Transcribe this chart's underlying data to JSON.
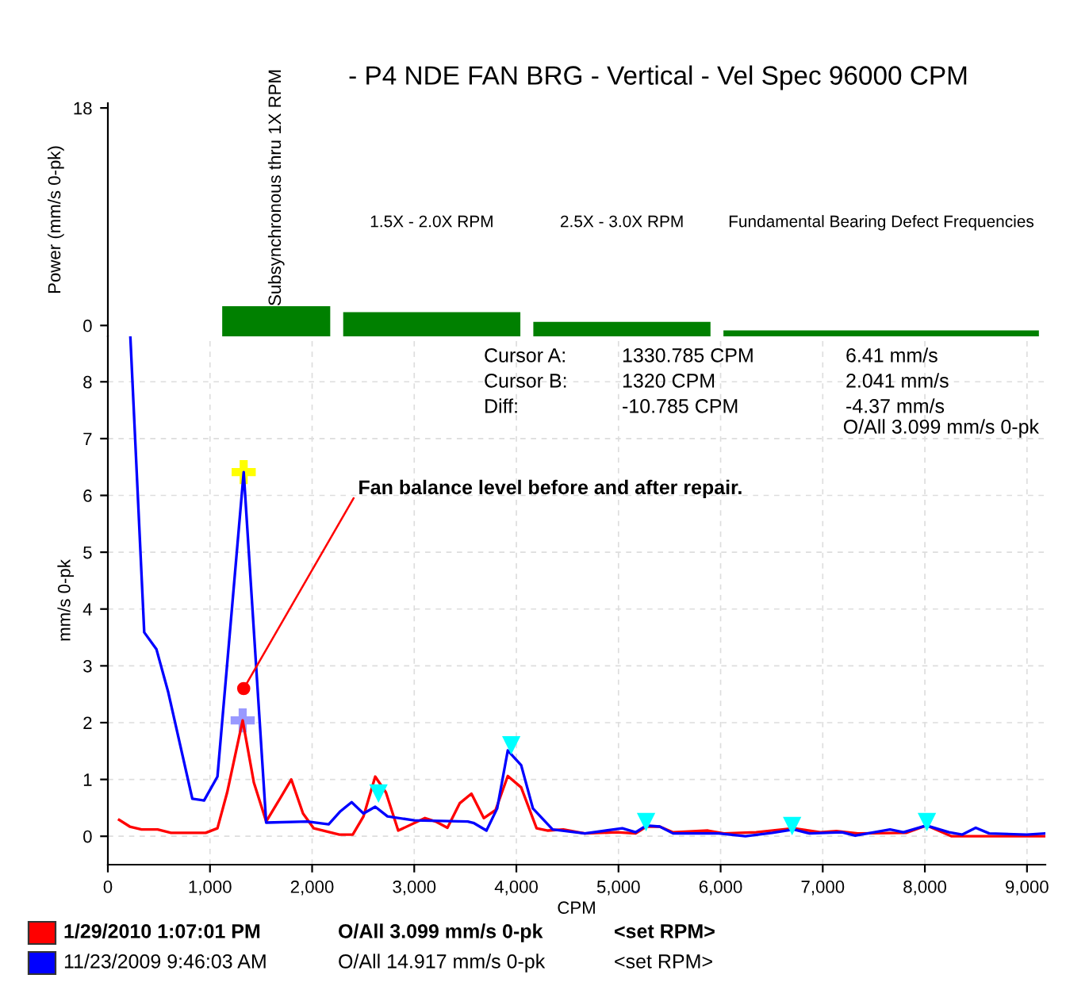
{
  "chart_data": [
    {
      "type": "bar",
      "title": "- P4 NDE FAN BRG - Vertical - Vel Spec 96000 CPM",
      "ylabel": "Power (mm/s 0-pk)",
      "categories": [
        "Subsynchronous thru 1X RPM",
        "1.5X - 2.0X RPM",
        "2.5X - 3.0X RPM",
        "Fundamental Bearing Defect Frequencies"
      ],
      "values": [
        2.5,
        2.0,
        1.2,
        0.5
      ],
      "base": [
        -0.9,
        -0.9,
        -0.9,
        -0.9
      ],
      "color": "#008000",
      "ylim": [
        -0.9,
        18.4
      ],
      "yticks": [
        0,
        18
      ],
      "tick_labels": "y",
      "grid": false,
      "legend": false
    },
    {
      "type": "line",
      "xlabel": "CPM",
      "ylabel": "mm/s 0-pk",
      "xlim": [
        0,
        9180
      ],
      "ylim": [
        -0.5,
        8.8
      ],
      "xticks": [
        {
          "value": 0,
          "label": "0"
        },
        {
          "value": 1000,
          "label": "1,000"
        },
        {
          "value": 2000,
          "label": "2,000"
        },
        {
          "value": 3000,
          "label": "3,000"
        },
        {
          "value": 4000,
          "label": "4,000"
        },
        {
          "value": 5000,
          "label": "5,000"
        },
        {
          "value": 6000,
          "label": "6,000"
        },
        {
          "value": 7000,
          "label": "7,000"
        },
        {
          "value": 8000,
          "label": "8,000"
        },
        {
          "value": 9000,
          "label": "9,000"
        }
      ],
      "yticks": [
        0,
        1,
        2,
        3,
        4,
        5,
        6,
        7,
        8
      ],
      "grid": true,
      "legend": "bottom",
      "marker": "none",
      "line_style": "solid",
      "series": [
        {
          "name": "1/29/2010 1:07:01 PM",
          "color": "#ff0000",
          "x": [
            110,
            215,
            330,
            487,
            618,
            958,
            1073,
            1168,
            1320,
            1429,
            1550,
            1691,
            1796,
            1911,
            2016,
            2267,
            2398,
            2503,
            2618,
            2723,
            2843,
            3105,
            3209,
            3325,
            3445,
            3560,
            3681,
            3796,
            3916,
            4047,
            4198,
            4309,
            4460,
            4670,
            4984,
            5168,
            5273,
            5404,
            5535,
            5876,
            6033,
            6348,
            6715,
            6977,
            7134,
            7344,
            7816,
            8015,
            8262,
            8707,
            9180
          ],
          "values": [
            0.29,
            0.17,
            0.12,
            0.12,
            0.06,
            0.06,
            0.14,
            0.77,
            2.04,
            0.95,
            0.26,
            0.68,
            1.0,
            0.4,
            0.14,
            0.03,
            0.03,
            0.35,
            1.05,
            0.77,
            0.1,
            0.32,
            0.26,
            0.15,
            0.58,
            0.75,
            0.32,
            0.46,
            1.06,
            0.86,
            0.14,
            0.1,
            0.12,
            0.05,
            0.07,
            0.05,
            0.17,
            0.17,
            0.07,
            0.1,
            0.05,
            0.07,
            0.14,
            0.07,
            0.09,
            0.05,
            0.06,
            0.19,
            0.0,
            0.0,
            0.0
          ]
        },
        {
          "name": "11/23/2009 9:46:03 AM",
          "color": "#0000ff",
          "x": [
            220,
            356,
            476,
            592,
            827,
            942,
            1073,
            1330,
            1550,
            1953,
            2162,
            2277,
            2387,
            2503,
            2618,
            2738,
            3000,
            3524,
            3586,
            3707,
            3812,
            3916,
            4047,
            4162,
            4355,
            4670,
            5037,
            5168,
            5273,
            5404,
            5535,
            5981,
            6243,
            6505,
            6715,
            6872,
            7187,
            7318,
            7659,
            7790,
            8015,
            8236,
            8367,
            8498,
            8630,
            8997,
            9180
          ],
          "values": [
            8.8,
            3.59,
            3.29,
            2.53,
            0.66,
            0.63,
            1.05,
            6.41,
            0.24,
            0.26,
            0.21,
            0.44,
            0.6,
            0.4,
            0.52,
            0.35,
            0.28,
            0.26,
            0.23,
            0.1,
            0.49,
            1.51,
            1.25,
            0.49,
            0.12,
            0.05,
            0.14,
            0.07,
            0.19,
            0.17,
            0.05,
            0.05,
            0.0,
            0.06,
            0.12,
            0.05,
            0.07,
            0.01,
            0.12,
            0.07,
            0.19,
            0.07,
            0.03,
            0.15,
            0.05,
            0.03,
            0.05
          ]
        },
        {
          "type": "scatter",
          "marker": "cross",
          "color": "#ffff00",
          "x": [
            1330
          ],
          "values": [
            6.41
          ]
        },
        {
          "type": "scatter",
          "marker": "cross",
          "color": "#9999ff",
          "x": [
            1320
          ],
          "values": [
            2.04
          ]
        },
        {
          "type": "scatter",
          "marker": "triangle",
          "color": "#00ffff",
          "x": [
            2650,
            3950,
            5270,
            6700,
            8020
          ],
          "values": [
            0.75,
            1.6,
            0.25,
            0.18,
            0.25
          ]
        }
      ],
      "annotations": [
        {
          "text": "Fan balance level before and after repair.",
          "x": 1330,
          "y": 2.6
        },
        "Cursor A:",
        "1330.785 CPM",
        "6.41 mm/s",
        "Cursor B:",
        "1320 CPM",
        "2.041 mm/s",
        "Diff:",
        "-10.785 CPM",
        "-4.37 mm/s",
        "O/All 3.099 mm/s 0-pk",
        "O/All 3.099 mm/s 0-pk",
        "<set RPM>",
        "O/All 14.917 mm/s 0-pk",
        "<set RPM>"
      ]
    }
  ]
}
